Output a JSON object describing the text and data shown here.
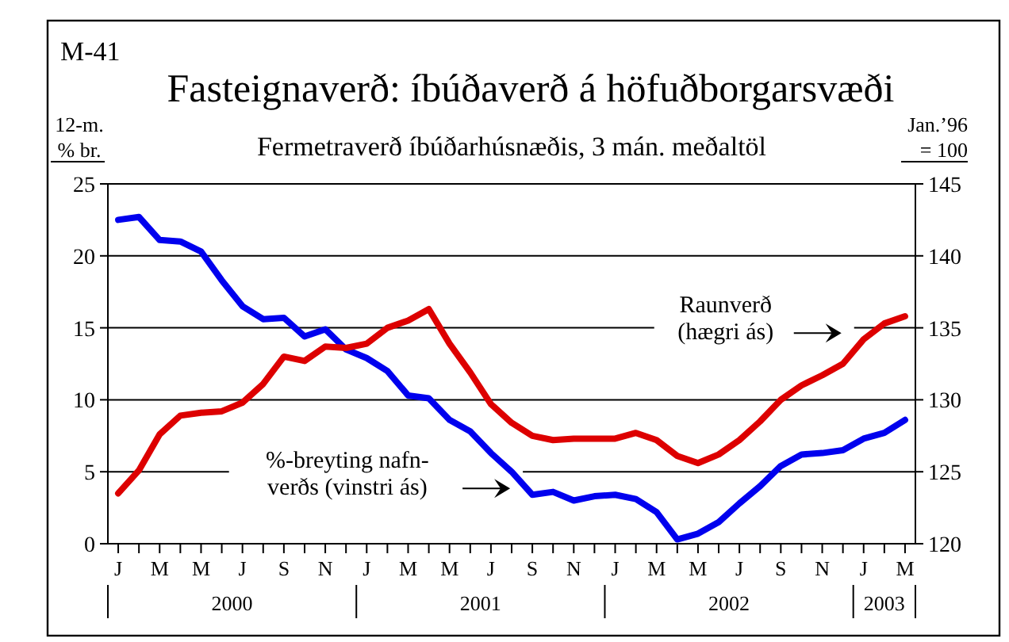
{
  "chart_data": {
    "type": "line",
    "title": "Fasteignaverð: íbúðaverð á höfuðborgarsvæði",
    "subtitle": "Fermetraverð íbúðarhúsnæðis, 3 mán. meðaltöl",
    "ylabel": "12-m.\n% br.",
    "y2label": "Jan.’96\n= 100",
    "annotations": [
      "M-41",
      "2000",
      "2001",
      "2002",
      "2003"
    ],
    "categories": [
      "J",
      null,
      "M",
      null,
      "M",
      null,
      "J",
      null,
      "S",
      null,
      "N",
      null,
      "J",
      null,
      "M",
      null,
      "M",
      null,
      "J",
      null,
      "S",
      null,
      "N",
      null,
      "J",
      null,
      "M",
      null,
      "M",
      null,
      "J",
      null,
      "S",
      null,
      "N",
      null,
      "J",
      null,
      "M"
    ],
    "ylim": [
      0,
      25
    ],
    "yticks": [
      0,
      5,
      10,
      15,
      20,
      25
    ],
    "y2lim": [
      120,
      145
    ],
    "y2ticks": [
      120,
      125,
      130,
      135,
      140,
      145
    ],
    "grid": "y",
    "series": [
      {
        "name": "%-breyting nafn-\nverðs (vinstri ás)",
        "color": "#0000ee",
        "values": [
          22.5,
          22.7,
          21.1,
          21.0,
          20.3,
          18.3,
          16.5,
          15.6,
          15.7,
          14.4,
          14.9,
          13.5,
          12.9,
          12.0,
          10.3,
          10.1,
          8.6,
          7.8,
          6.3,
          5.0,
          3.4,
          3.6,
          3.0,
          3.3,
          3.4,
          3.1,
          2.2,
          0.3,
          0.7,
          1.5,
          2.8,
          4.0,
          5.4,
          6.2,
          6.3,
          6.5,
          7.3,
          7.7,
          8.6
        ]
      },
      {
        "name": "Raunverð\n(hægri ás)",
        "color": "#dd0000",
        "axis": "y2",
        "values": [
          123.5,
          125.1,
          127.6,
          128.9,
          129.1,
          129.2,
          129.8,
          131.1,
          133.0,
          132.7,
          133.7,
          133.6,
          133.9,
          135.0,
          135.5,
          136.3,
          133.9,
          131.9,
          129.7,
          128.4,
          127.5,
          127.2,
          127.3,
          127.3,
          127.3,
          127.7,
          127.2,
          126.1,
          125.6,
          126.2,
          127.2,
          128.5,
          130.0,
          131.0,
          131.7,
          132.5,
          134.2,
          135.3,
          135.8
        ]
      }
    ]
  }
}
